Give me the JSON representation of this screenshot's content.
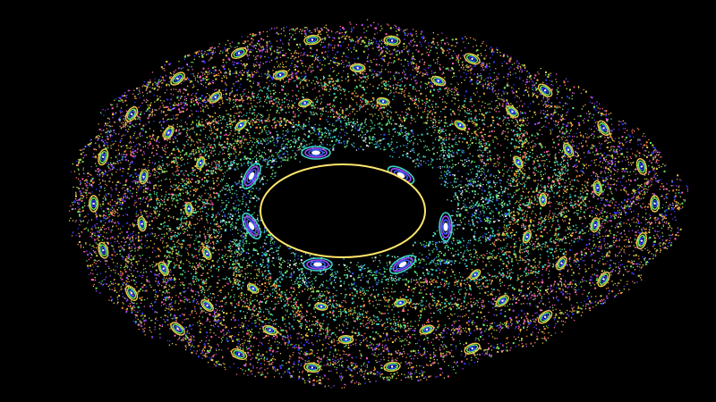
{
  "scene": {
    "subject": "fractal-orbit-map",
    "background_color": "#000000",
    "palette": [
      "#f2c84b",
      "#63e86a",
      "#39d4c8",
      "#3a5bff",
      "#a046ff",
      "#ff5fb0",
      "#ff8a3a",
      "#c8d84a",
      "#e7e7e7",
      "#2a3cff"
    ],
    "has_central_void": true,
    "has_island_chains": true
  }
}
